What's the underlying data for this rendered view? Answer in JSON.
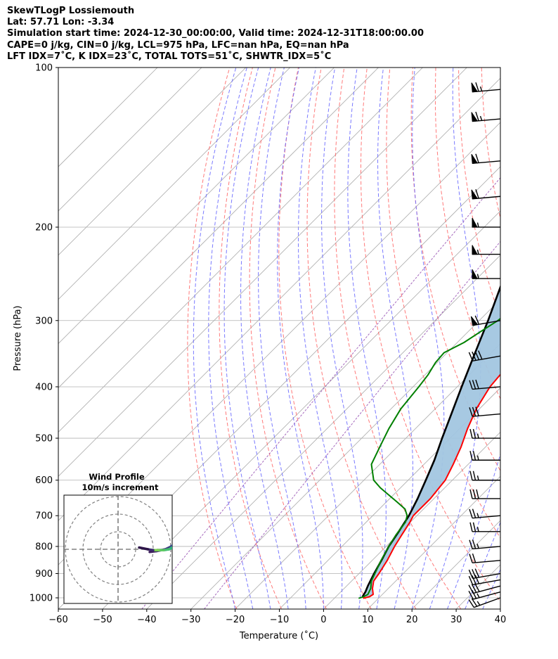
{
  "header": {
    "line1": "SkewTLogP Lossiemouth",
    "line2": "Lat: 57.71   Lon: -3.34",
    "line3": "Simulation start time: 2024-12-30_00:00:00, Valid time: 2024-12-31T18:00:00.00",
    "line4": "CAPE=0 j/kg, CIN=0 j/kg, LCL=975 hPa, LFC=nan hPa, EQ=nan hPa",
    "line5": "LFT IDX=7˚C, K IDX=23˚C, TOTAL TOTS=51˚C, SHWTR_IDX=5˚C"
  },
  "chart_data": {
    "type": "line",
    "chart_kind": "Skew-T log-P",
    "xlabel": "Temperature (˚C)",
    "ylabel": "Pressure (hPa)",
    "xlim": [
      -60,
      40
    ],
    "ylim": [
      1050,
      100
    ],
    "y_scale": "log",
    "skew_degrees": 45,
    "grid": true,
    "x_ticks": [
      -60,
      -50,
      -40,
      -30,
      -20,
      -10,
      0,
      10,
      20,
      30,
      40
    ],
    "x_tick_labels": [
      "−60",
      "−50",
      "−40",
      "−30",
      "−20",
      "−10",
      "0",
      "10",
      "20",
      "30",
      "40"
    ],
    "y_ticks": [
      1000,
      900,
      800,
      700,
      600,
      500,
      400,
      300,
      200,
      100
    ],
    "y_tick_labels": [
      "1000",
      "900",
      "800",
      "700",
      "600",
      "500",
      "400",
      "300",
      "200",
      "100"
    ],
    "colors": {
      "temperature": "#ff0000",
      "dewpoint": "#008000",
      "parcel": "#000000",
      "cape_fill": "#a2c6e0",
      "dry_adiabats": "#ff6b6b",
      "moist_adiabats": "#6b6bff",
      "isotherms": "#aaaaaa",
      "mixing_ratio": "#9b59b6"
    },
    "series": [
      {
        "role": "temperature",
        "pressure": [
          1002,
          995,
          985,
          960,
          930,
          900,
          850,
          800,
          760,
          720,
          700,
          650,
          600,
          560,
          520,
          480,
          440,
          400,
          380,
          360,
          340,
          320,
          300,
          280,
          260,
          240,
          230,
          220,
          210,
          200,
          180,
          160,
          140,
          120,
          100
        ],
        "values": [
          6.5,
          7.6,
          7.9,
          6.4,
          5.0,
          4.5,
          3.4,
          1.9,
          0.9,
          -0.1,
          -0.8,
          -0.8,
          -1.6,
          -3.4,
          -5.5,
          -8.2,
          -10.7,
          -12.6,
          -13.0,
          -12.6,
          -12.3,
          -12.2,
          -12.3,
          -12.7,
          -13.3,
          -13.7,
          -13.4,
          -12.7,
          -11.8,
          -10.7,
          -8.5,
          -6.3,
          -4.3,
          -2.1,
          0.2
        ]
      },
      {
        "role": "dewpoint",
        "pressure": [
          1002,
          995,
          985,
          960,
          930,
          900,
          850,
          800,
          760,
          720,
          700,
          680,
          660,
          640,
          620,
          600,
          560,
          520,
          480,
          440,
          400,
          380,
          360,
          345,
          330,
          315,
          300,
          280,
          260,
          240,
          220,
          200,
          180,
          160,
          150,
          140,
          120,
          100
        ],
        "values": [
          5.5,
          6.3,
          6.7,
          6.0,
          4.5,
          3.6,
          2.0,
          0.6,
          -0.4,
          -1.1,
          -2.2,
          -4.2,
          -7.5,
          -11.0,
          -14.6,
          -17.8,
          -21.9,
          -23.9,
          -26.0,
          -27.8,
          -28.7,
          -29.3,
          -30.4,
          -30.7,
          -28.5,
          -27.2,
          -25.8,
          -24.8,
          -23.4,
          -22.7,
          -22.3,
          -22.3,
          -22.3,
          -22.3,
          -21.6,
          -19.8,
          -15.2,
          -9.7
        ]
      },
      {
        "role": "parcel",
        "pressure": [
          995,
          975,
          950,
          900,
          850,
          800,
          750,
          700,
          650,
          600,
          550,
          500,
          450,
          400,
          350,
          300,
          250,
          200,
          150,
          120,
          100
        ],
        "values": [
          6.0,
          5.6,
          4.8,
          3.4,
          2.1,
          0.6,
          -0.5,
          -1.8,
          -3.7,
          -6.0,
          -8.6,
          -11.8,
          -15.2,
          -19.0,
          -23.2,
          -28.0,
          -34.0,
          -40.5,
          -47.2,
          -51.6,
          -55.2
        ]
      }
    ],
    "wind_barbs": {
      "pressure": [
        1000,
        975,
        950,
        925,
        900,
        850,
        800,
        750,
        700,
        650,
        600,
        550,
        500,
        450,
        400,
        350,
        300,
        250,
        225,
        200,
        175,
        150,
        125,
        110
      ],
      "speed_kt": [
        25,
        25,
        30,
        30,
        30,
        20,
        25,
        25,
        25,
        30,
        25,
        25,
        25,
        30,
        30,
        40,
        60,
        55,
        55,
        55,
        60,
        60,
        65,
        65
      ],
      "direction_deg": [
        250,
        255,
        255,
        260,
        260,
        265,
        265,
        270,
        265,
        270,
        270,
        270,
        270,
        265,
        265,
        260,
        260,
        270,
        270,
        270,
        265,
        265,
        265,
        265
      ]
    },
    "inset": {
      "title": "Wind Profile",
      "subtitle": "10m/s increment",
      "type": "hodograph",
      "ring_step_ms": 10,
      "u": [
        2,
        6,
        11,
        14,
        16,
        17,
        18,
        17,
        16,
        15,
        13,
        10,
        7,
        4,
        1,
        -4
      ],
      "v": [
        -1.5,
        -1,
        0,
        1.5,
        3,
        3.5,
        3.5,
        3,
        2,
        1,
        0,
        -0.5,
        -0.5,
        -0.5,
        0,
        1
      ]
    }
  }
}
